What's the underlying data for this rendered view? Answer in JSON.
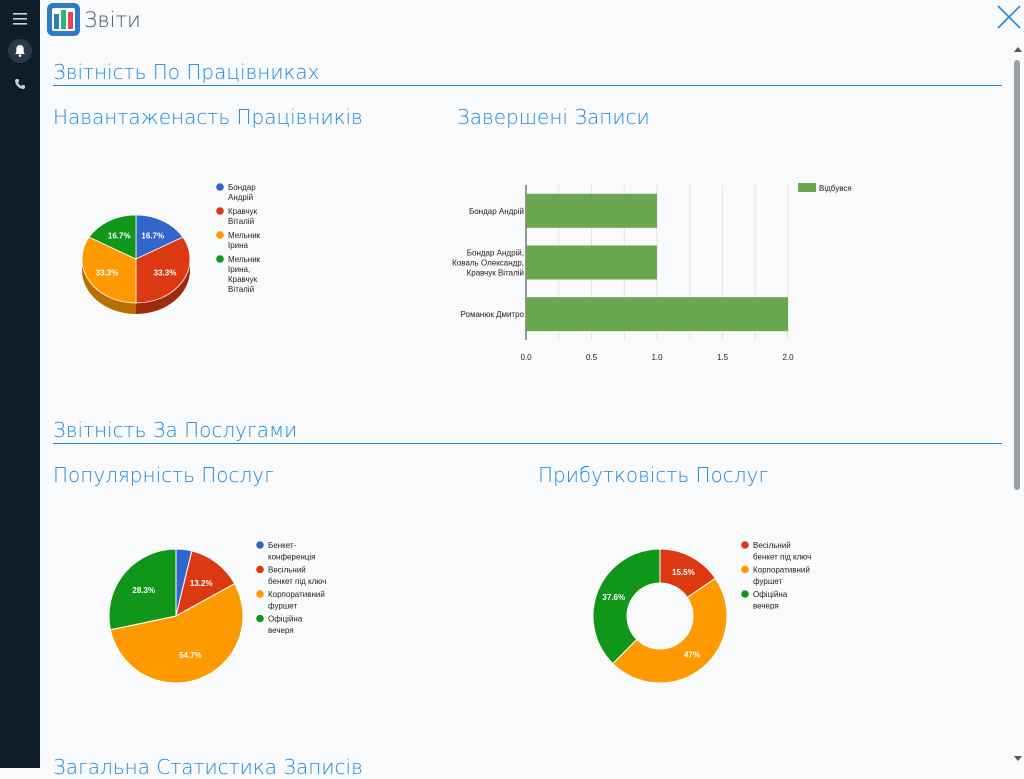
{
  "header": {
    "title": "Звіти"
  },
  "sections": {
    "employees": "Звітність По Працівниках",
    "services": "Звітність За Послугами",
    "general": "Загальна Статистика Записів"
  },
  "colors": {
    "blue": "#3366cc",
    "red": "#dc3912",
    "orange": "#ff9900",
    "green": "#109618",
    "bar": "#6aa84f",
    "accent": "#1f8ad6"
  },
  "chart_data": [
    {
      "type": "pie",
      "title": "Навантаженасть Працівників",
      "style": "3d",
      "legend_position": "right",
      "slices": [
        {
          "label": [
            "Бондар",
            "Андрій"
          ],
          "value": 16.7,
          "display": "16.7%",
          "color": "#3366cc"
        },
        {
          "label": [
            "Кравчук",
            "Віталій"
          ],
          "value": 33.3,
          "display": "33.3%",
          "color": "#dc3912"
        },
        {
          "label": [
            "Мельник",
            "Ірина"
          ],
          "value": 33.3,
          "display": "33.3%",
          "color": "#ff9900"
        },
        {
          "label": [
            "Мельник",
            "Ірина,",
            "Кравчук",
            "Віталій"
          ],
          "value": 16.7,
          "display": "16.7%",
          "color": "#109618"
        }
      ]
    },
    {
      "type": "bar",
      "orientation": "horizontal",
      "title": "Завершені Записи",
      "categories": [
        [
          "Бондар Андрій"
        ],
        [
          "Бондар Андрій,",
          "Коваль Олександр,",
          "Кравчук Віталій"
        ],
        [
          "Романюк Дмитро"
        ]
      ],
      "series": [
        {
          "name": "Відбувся",
          "values": [
            1,
            1,
            2
          ],
          "color": "#6aa84f"
        }
      ],
      "xlim": [
        0,
        2
      ],
      "ticks": [
        "0.0",
        "0.5",
        "1.0",
        "1.5",
        "2.0"
      ],
      "legend_position": "top-right",
      "grid": true
    },
    {
      "type": "pie",
      "title": "Популярність Послуг",
      "legend_position": "right",
      "slices": [
        {
          "label": [
            "Бенкет-",
            "конференція"
          ],
          "value": 3.8,
          "display": "",
          "color": "#3366cc"
        },
        {
          "label": [
            "Весільний",
            "бенкет під ключ"
          ],
          "value": 13.2,
          "display": "13.2%",
          "color": "#dc3912"
        },
        {
          "label": [
            "Корпоративний",
            "фуршет"
          ],
          "value": 54.7,
          "display": "54.7%",
          "color": "#ff9900"
        },
        {
          "label": [
            "Офіційна",
            "вечеря"
          ],
          "value": 28.3,
          "display": "28.3%",
          "color": "#109618"
        }
      ]
    },
    {
      "type": "pie",
      "style": "donut",
      "title": "Прибутковість Послуг",
      "legend_position": "right",
      "slices": [
        {
          "label": [
            "Весільний",
            "бенкет під ключ"
          ],
          "value": 15.5,
          "display": "15.5%",
          "color": "#dc3912"
        },
        {
          "label": [
            "Корпоративний",
            "фуршет"
          ],
          "value": 47,
          "display": "47%",
          "color": "#ff9900"
        },
        {
          "label": [
            "Офіційна",
            "вечеря"
          ],
          "value": 37.6,
          "display": "37.6%",
          "color": "#109618"
        }
      ]
    }
  ]
}
